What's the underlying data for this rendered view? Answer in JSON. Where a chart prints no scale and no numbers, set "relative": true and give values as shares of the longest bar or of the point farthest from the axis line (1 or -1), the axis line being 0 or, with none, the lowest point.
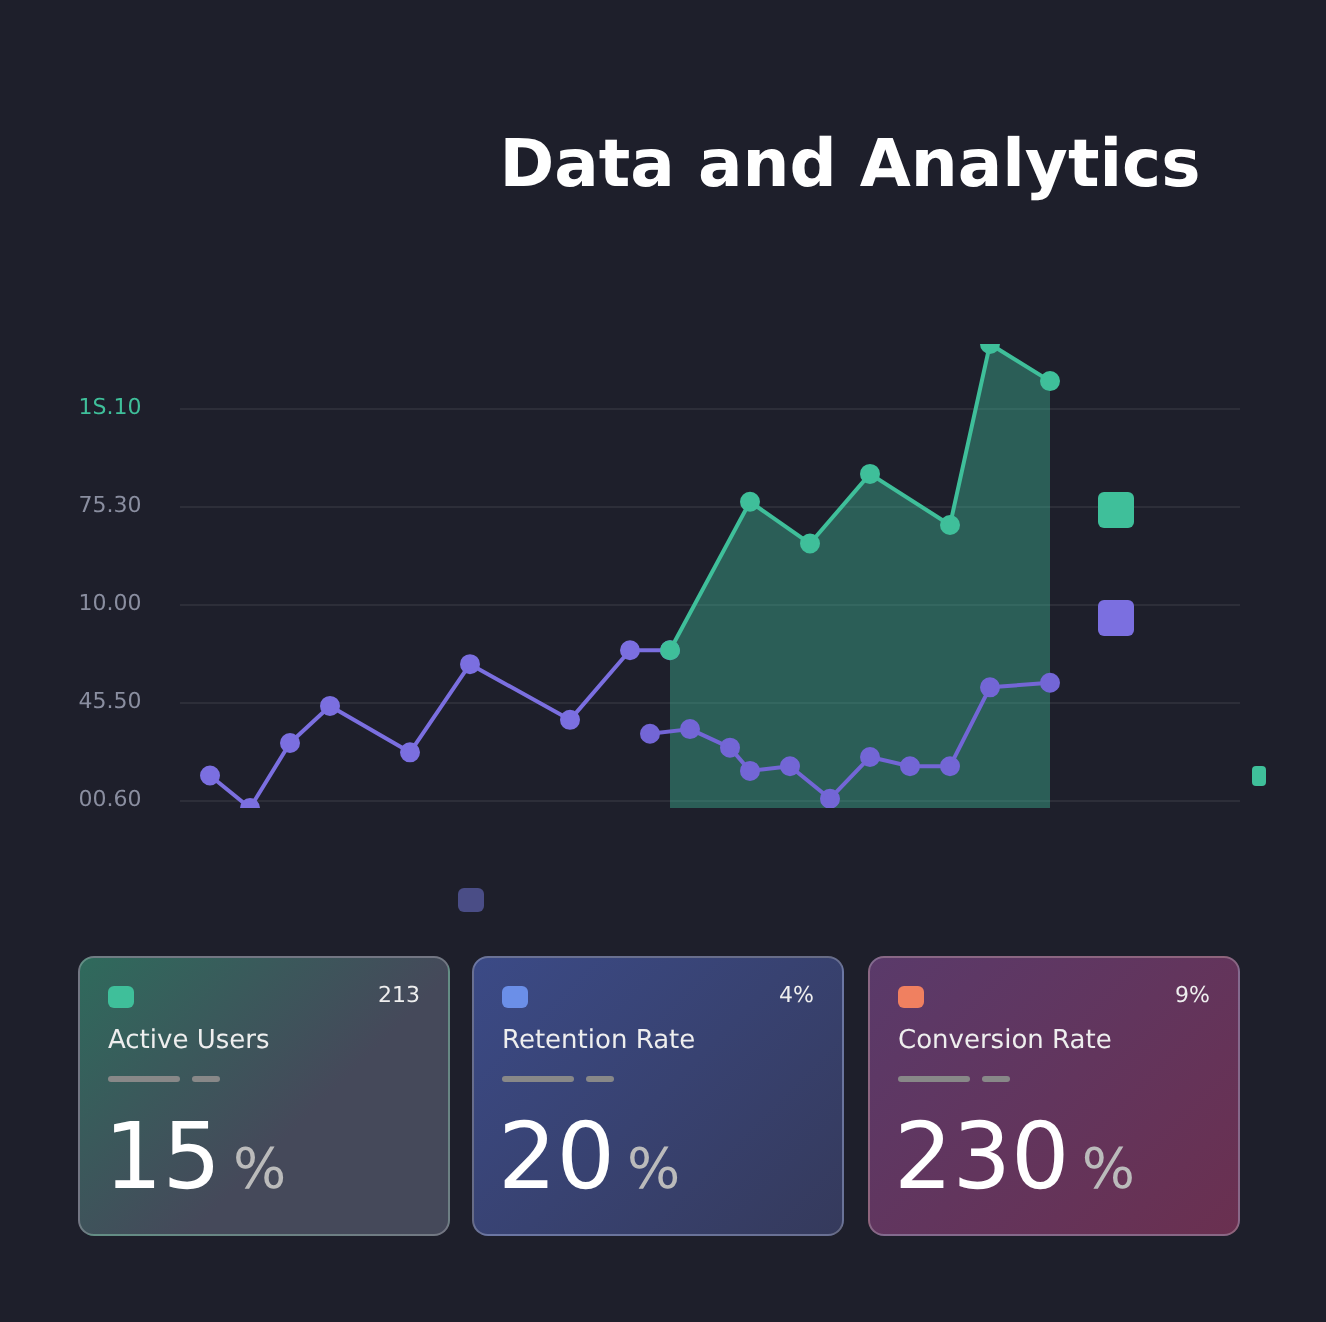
{
  "chart_data": [
    {
      "type": "line",
      "title": "Data and Analytics",
      "relative": true,
      "grid": true,
      "marker": "circle",
      "categories": [
        null,
        null,
        null,
        null,
        null,
        null,
        null,
        null,
        null,
        null,
        null,
        null,
        null,
        null,
        null,
        null,
        null,
        null,
        null,
        null,
        null,
        null,
        null,
        null,
        null,
        null,
        null,
        null,
        null,
        null,
        null,
        null,
        null,
        null,
        null,
        null,
        null,
        null,
        null,
        null,
        null,
        null,
        null,
        null
      ],
      "annotations": [
        "1S.10",
        "75.30",
        "10.00",
        "45.50",
        "00.60"
      ],
      "series": [
        {
          "type": "line",
          "color": "#7b6fe0",
          "values": [
            0.07,
            null,
            0,
            null,
            0.14,
            null,
            0.22,
            null,
            null,
            null,
            0.12,
            null,
            null,
            0.31,
            null,
            null,
            null,
            null,
            0.19,
            null,
            null,
            0.34,
            null,
            0.34,
            null,
            null,
            null,
            null,
            null,
            null,
            null,
            null,
            null,
            null,
            null,
            null,
            null,
            null,
            null,
            null,
            null,
            null,
            null,
            null
          ]
        },
        {
          "type": "area",
          "color": "#3fbf9a",
          "values": [
            null,
            null,
            null,
            null,
            null,
            null,
            null,
            null,
            null,
            null,
            null,
            null,
            null,
            null,
            null,
            null,
            null,
            null,
            null,
            null,
            null,
            null,
            null,
            0.34,
            null,
            null,
            null,
            0.66,
            null,
            null,
            0.57,
            null,
            null,
            0.72,
            null,
            null,
            null,
            0.61,
            null,
            1,
            null,
            null,
            0.92,
            null
          ]
        },
        {
          "type": "line",
          "color": "#7366d6",
          "values": [
            null,
            null,
            null,
            null,
            null,
            null,
            null,
            null,
            null,
            null,
            null,
            null,
            null,
            null,
            null,
            null,
            null,
            null,
            null,
            null,
            null,
            null,
            0.16,
            null,
            0.17,
            null,
            0.13,
            0.08,
            null,
            0.09,
            null,
            0.02,
            null,
            0.11,
            null,
            0.09,
            null,
            0.09,
            null,
            0.26,
            null,
            null,
            0.27,
            null
          ]
        }
      ]
    },
    {
      "type": "other",
      "title": "Active Users",
      "annotations": [
        "213",
        "15",
        "%"
      ]
    },
    {
      "type": "other",
      "title": "Retention Rate",
      "annotations": [
        "4%",
        "20",
        "%"
      ]
    },
    {
      "type": "other",
      "title": "Conversion Rate",
      "annotations": [
        "9%",
        "230",
        "%"
      ]
    }
  ]
}
